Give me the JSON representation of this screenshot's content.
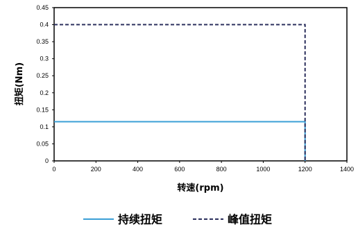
{
  "chart_data": {
    "type": "line",
    "xlabel": "转速(rpm)",
    "ylabel": "扭矩(Nm)",
    "xlim": [
      0,
      1400
    ],
    "ylim": [
      0,
      0.45
    ],
    "x_ticks": [
      0,
      200,
      400,
      600,
      800,
      1000,
      1200,
      1400
    ],
    "y_ticks": [
      "0",
      "0.05",
      "0.1",
      "0.15",
      "0.2",
      "0.25",
      "0.3",
      "0.35",
      "0.4",
      "0.45"
    ],
    "grid": false,
    "legend_position": "bottom",
    "series": [
      {
        "name": "持续扭矩",
        "color": "#3a9fd6",
        "style": "solid",
        "x": [
          0,
          1200,
          1200
        ],
        "y": [
          0.115,
          0.115,
          0
        ]
      },
      {
        "name": "峰值扭矩",
        "color": "#2b2f5c",
        "style": "dashed",
        "x": [
          0,
          1200,
          1200
        ],
        "y": [
          0.4,
          0.4,
          0
        ]
      }
    ]
  }
}
